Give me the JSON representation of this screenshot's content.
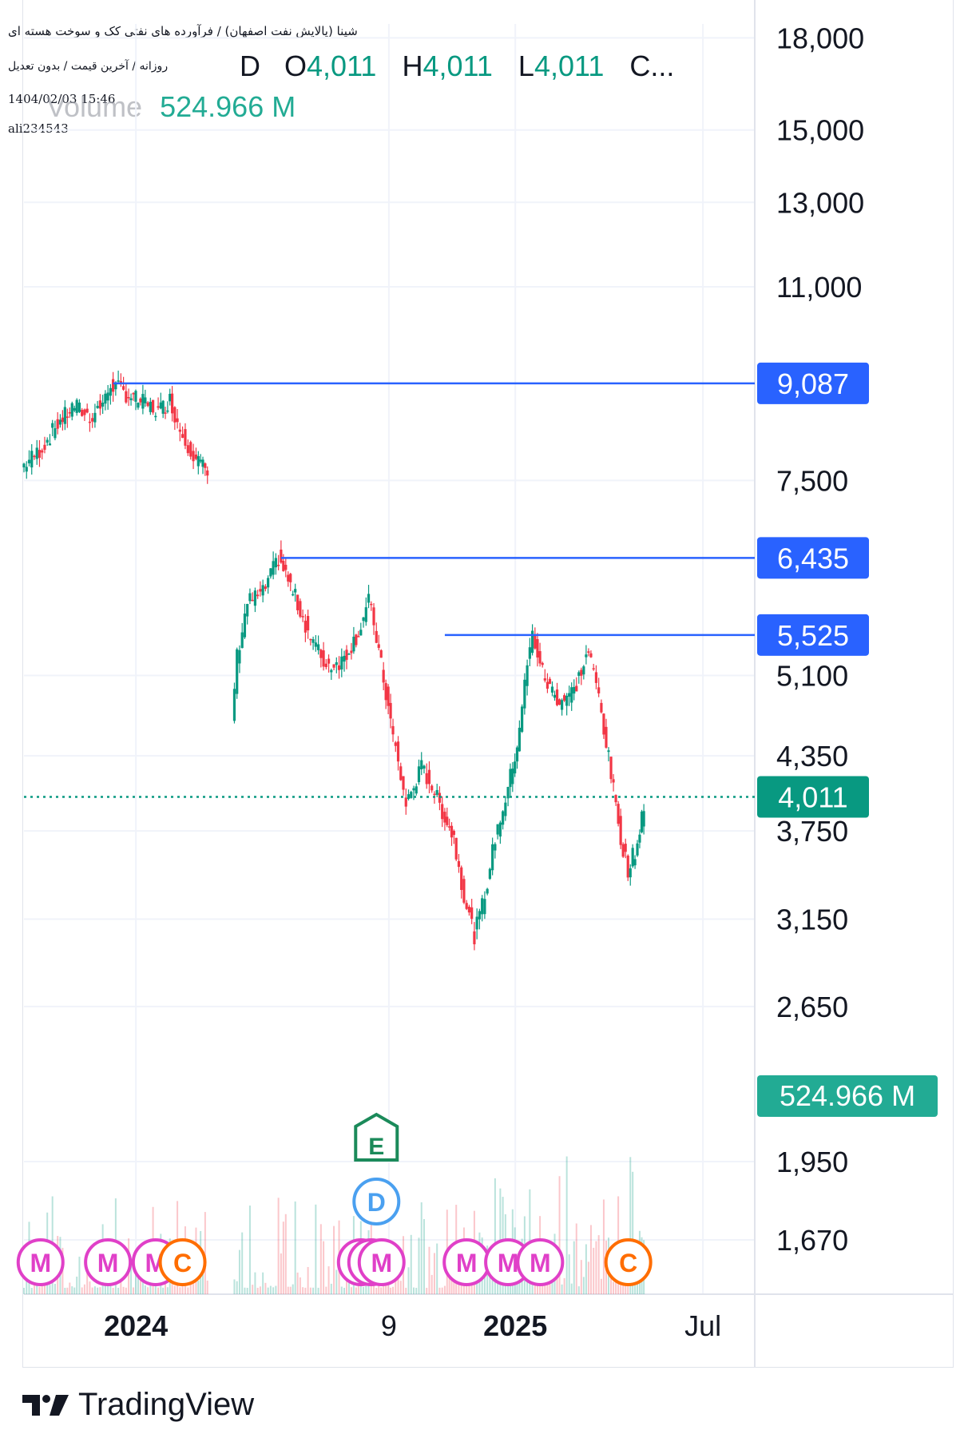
{
  "info": {
    "title": "شپنا (پالایش نفت اصفهان) / فرآورده های نفتی کک و سوخت هسته ای",
    "subtitle": "روزانه / آخرین قیمت / بدون تعدیل",
    "date": "1404/02/03 15:46",
    "user": "ali234543"
  },
  "legend": {
    "interval": "D",
    "o_label": "O",
    "o_value": "4,011",
    "h_label": "H",
    "h_value": "4,011",
    "l_label": "L",
    "l_value": "4,011",
    "c_label": "C...",
    "volume_label": "Volume",
    "volume_value": "524.966 M"
  },
  "brand": "TradingView",
  "colors": {
    "up": "#089981",
    "down": "#f23645",
    "line": "#2962ff",
    "last_price": "#089981",
    "volume_label": "#22ab94",
    "marker_m": "#e040c8",
    "marker_c": "#ff6d00",
    "marker_e": "#1b8a5a",
    "marker_d": "#4aa0f0"
  },
  "chart_data": {
    "type": "candlestick",
    "scale": "log",
    "ylim": [
      1500,
      18500
    ],
    "price_ticks": [
      18000,
      15000,
      13000,
      11000,
      7500,
      5100,
      4350,
      3750,
      3150,
      2650,
      1950,
      1670
    ],
    "price_tick_labels": [
      "18,000",
      "15,000",
      "13,000",
      "11,000",
      "7,500",
      "5,100",
      "4,350",
      "3,750",
      "3,150",
      "2,650",
      "1,950",
      "1,670"
    ],
    "x_ticks": [
      {
        "label": "2024",
        "date": "2024-01-01",
        "bold": true
      },
      {
        "label": "9",
        "date": "2024-09-01",
        "bold": false
      },
      {
        "label": "2025",
        "date": "2025-01-01",
        "bold": true
      },
      {
        "label": "Jul",
        "date": "2025-07-01",
        "bold": false
      }
    ],
    "x_range": [
      "2023-09-15",
      "2025-08-20"
    ],
    "horizontal_lines": [
      {
        "price": 9087,
        "label": "9,087",
        "from": "2023-12-10"
      },
      {
        "price": 6435,
        "label": "6,435",
        "from": "2024-05-20"
      },
      {
        "price": 5525,
        "label": "5,525",
        "from": "2024-10-25"
      }
    ],
    "last_price": {
      "price": 4011,
      "label": "4,011"
    },
    "volume_badge": "524.966 M",
    "price_path": [
      [
        "2023-09-15",
        7700
      ],
      [
        "2023-10-05",
        8000
      ],
      [
        "2023-10-20",
        8400
      ],
      [
        "2023-11-05",
        8700
      ],
      [
        "2023-11-20",
        8500
      ],
      [
        "2023-12-05",
        8800
      ],
      [
        "2023-12-10",
        9087
      ],
      [
        "2023-12-25",
        8900
      ],
      [
        "2024-01-10",
        8750
      ],
      [
        "2024-01-25",
        8600
      ],
      [
        "2024-02-05",
        8800
      ],
      [
        "2024-02-15",
        8300
      ],
      [
        "2024-02-28",
        7900
      ],
      [
        "2024-03-10",
        7650
      ],
      [
        "2024-04-05",
        4700
      ],
      [
        "2024-04-10",
        5300
      ],
      [
        "2024-04-20",
        5900
      ],
      [
        "2024-05-05",
        6000
      ],
      [
        "2024-05-20",
        6435
      ],
      [
        "2024-06-05",
        5950
      ],
      [
        "2024-06-20",
        5500
      ],
      [
        "2024-07-05",
        5200
      ],
      [
        "2024-07-20",
        5250
      ],
      [
        "2024-08-05",
        5550
      ],
      [
        "2024-08-15",
        5900
      ],
      [
        "2024-08-20",
        5650
      ],
      [
        "2024-09-05",
        4650
      ],
      [
        "2024-09-20",
        3950
      ],
      [
        "2024-10-05",
        4250
      ],
      [
        "2024-10-15",
        4100
      ],
      [
        "2024-10-25",
        3900
      ],
      [
        "2024-11-05",
        3700
      ],
      [
        "2024-11-15",
        3300
      ],
      [
        "2024-11-25",
        3050
      ],
      [
        "2024-12-05",
        3300
      ],
      [
        "2024-12-15",
        3700
      ],
      [
        "2024-12-25",
        4000
      ],
      [
        "2025-01-05",
        4450
      ],
      [
        "2025-01-15",
        5200
      ],
      [
        "2025-01-20",
        5525
      ],
      [
        "2025-02-01",
        5050
      ],
      [
        "2025-02-15",
        4850
      ],
      [
        "2025-03-01",
        4950
      ],
      [
        "2025-03-15",
        5350
      ],
      [
        "2025-03-25",
        4900
      ],
      [
        "2025-04-15",
        3700
      ],
      [
        "2025-04-22",
        3480
      ],
      [
        "2025-05-01",
        3650
      ],
      [
        "2025-05-05",
        3900
      ]
    ],
    "markers": [
      {
        "type": "M",
        "date": "2023-10-01"
      },
      {
        "type": "M",
        "date": "2023-12-05"
      },
      {
        "type": "M",
        "date": "2024-01-20"
      },
      {
        "type": "C",
        "date": "2024-02-15"
      },
      {
        "type": "M",
        "date": "2024-08-05"
      },
      {
        "type": "I",
        "date": "2024-08-15"
      },
      {
        "type": "M",
        "date": "2024-08-25"
      },
      {
        "type": "M",
        "date": "2024-11-15"
      },
      {
        "type": "M",
        "date": "2024-12-25"
      },
      {
        "type": "M",
        "date": "2025-01-25"
      },
      {
        "type": "C",
        "date": "2025-04-20"
      }
    ],
    "events": [
      {
        "type": "E",
        "date": "2024-08-20"
      },
      {
        "type": "D",
        "date": "2024-08-20"
      }
    ]
  }
}
